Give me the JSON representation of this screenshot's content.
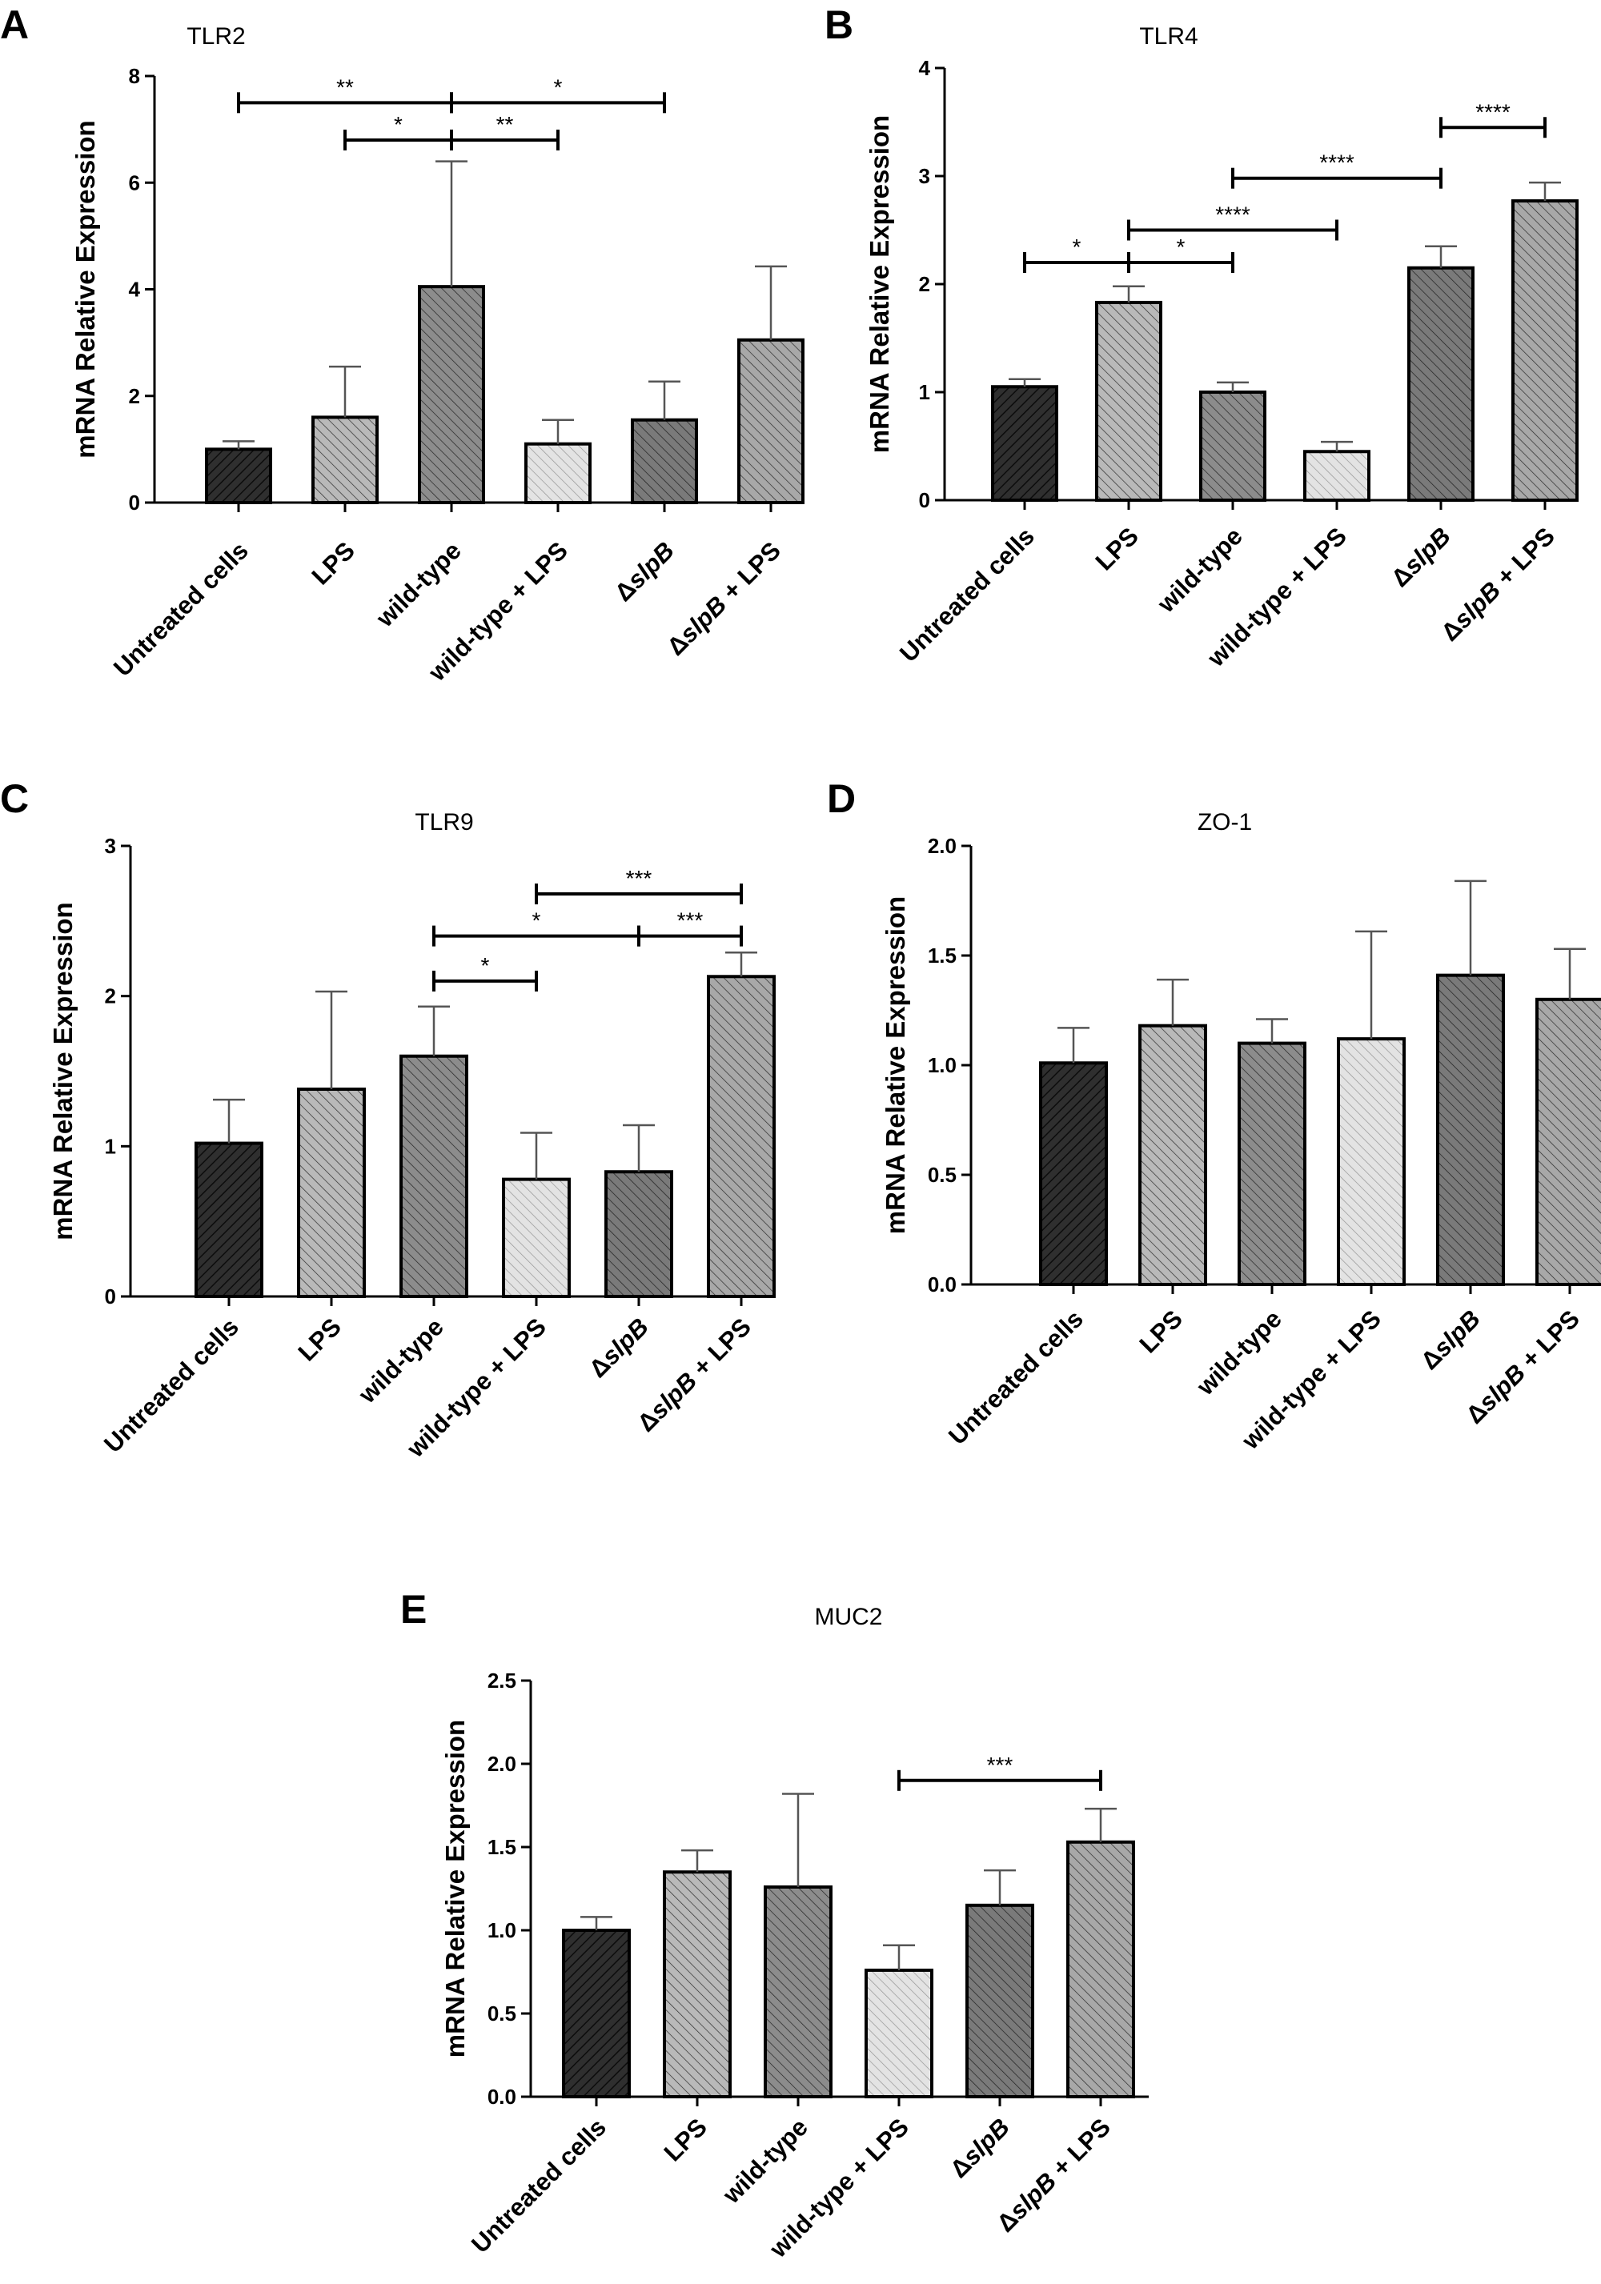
{
  "figure": {
    "categories": [
      [
        "Untreated cells"
      ],
      [
        "LPS"
      ],
      [
        "wild-type"
      ],
      [
        "wild-type + LPS"
      ],
      [
        "Δ",
        "slpB"
      ],
      [
        "Δ",
        "slpB",
        " + LPS"
      ]
    ],
    "ylabel": "mRNA Relative Expression"
  },
  "chart_data": [
    {
      "panel": "A",
      "title": "TLR2",
      "type": "bar",
      "ylim": [
        0,
        8
      ],
      "ticks": [
        "0",
        "2",
        "4",
        "6",
        "8"
      ],
      "values": [
        1.0,
        1.6,
        4.05,
        1.1,
        1.55,
        3.05
      ],
      "errors": [
        0.15,
        0.95,
        2.35,
        0.45,
        0.72,
        1.38
      ],
      "significance": [
        {
          "from": 0,
          "to": 2,
          "label": "**",
          "level": 7.5
        },
        {
          "from": 2,
          "to": 4,
          "label": "*",
          "level": 7.5
        },
        {
          "from": 1,
          "to": 2,
          "label": "*",
          "level": 6.8
        },
        {
          "from": 2,
          "to": 3,
          "label": "**",
          "level": 6.8
        }
      ]
    },
    {
      "panel": "B",
      "title": "TLR4",
      "type": "bar",
      "ylim": [
        0,
        4
      ],
      "ticks": [
        "0",
        "1",
        "2",
        "3",
        "4"
      ],
      "values": [
        1.05,
        1.83,
        1.0,
        0.45,
        2.15,
        2.77
      ],
      "errors": [
        0.07,
        0.15,
        0.09,
        0.09,
        0.2,
        0.17
      ],
      "significance": [
        {
          "from": 4,
          "to": 5,
          "label": "****",
          "level": 3.45
        },
        {
          "from": 2,
          "to": 4,
          "label": "****",
          "level": 2.98
        },
        {
          "from": 1,
          "to": 3,
          "label": "****",
          "level": 2.5
        },
        {
          "from": 0,
          "to": 1,
          "label": "*",
          "level": 2.2
        },
        {
          "from": 1,
          "to": 2,
          "label": "*",
          "level": 2.2
        }
      ]
    },
    {
      "panel": "C",
      "title": "TLR9",
      "type": "bar",
      "ylim": [
        0,
        3
      ],
      "ticks": [
        "0",
        "1",
        "2",
        "3"
      ],
      "values": [
        1.02,
        1.38,
        1.6,
        0.78,
        0.83,
        2.13
      ],
      "errors": [
        0.29,
        0.65,
        0.33,
        0.31,
        0.31,
        0.16
      ],
      "significance": [
        {
          "from": 3,
          "to": 5,
          "label": "***",
          "level": 2.68
        },
        {
          "from": 2,
          "to": 4,
          "label": "*",
          "level": 2.4
        },
        {
          "from": 4,
          "to": 5,
          "label": "***",
          "level": 2.4
        },
        {
          "from": 2,
          "to": 3,
          "label": "*",
          "level": 2.1
        }
      ]
    },
    {
      "panel": "D",
      "title": "ZO-1",
      "type": "bar",
      "ylim": [
        0,
        2.0
      ],
      "ticks": [
        "0.0",
        "0.5",
        "1.0",
        "1.5",
        "2.0"
      ],
      "values": [
        1.01,
        1.18,
        1.1,
        1.12,
        1.41,
        1.3
      ],
      "errors": [
        0.16,
        0.21,
        0.11,
        0.49,
        0.43,
        0.23
      ],
      "significance": []
    },
    {
      "panel": "E",
      "title": "MUC2",
      "type": "bar",
      "ylim": [
        0,
        2.5
      ],
      "ticks": [
        "0.0",
        "0.5",
        "1.0",
        "1.5",
        "2.0",
        "2.5"
      ],
      "values": [
        1.0,
        1.35,
        1.26,
        0.76,
        1.15,
        1.53
      ],
      "errors": [
        0.08,
        0.13,
        0.56,
        0.15,
        0.21,
        0.2
      ],
      "significance": [
        {
          "from": 3,
          "to": 5,
          "label": "***",
          "level": 1.9
        }
      ]
    }
  ],
  "colors": {
    "bars": [
      "#2f2f2f",
      "#b9b9b9",
      "#8c8c8c",
      "#e3e3e3",
      "#7a7a7a",
      "#a8a8a8"
    ],
    "hatch": "#000000",
    "axis": "#000000",
    "error_bar": "#555555"
  }
}
